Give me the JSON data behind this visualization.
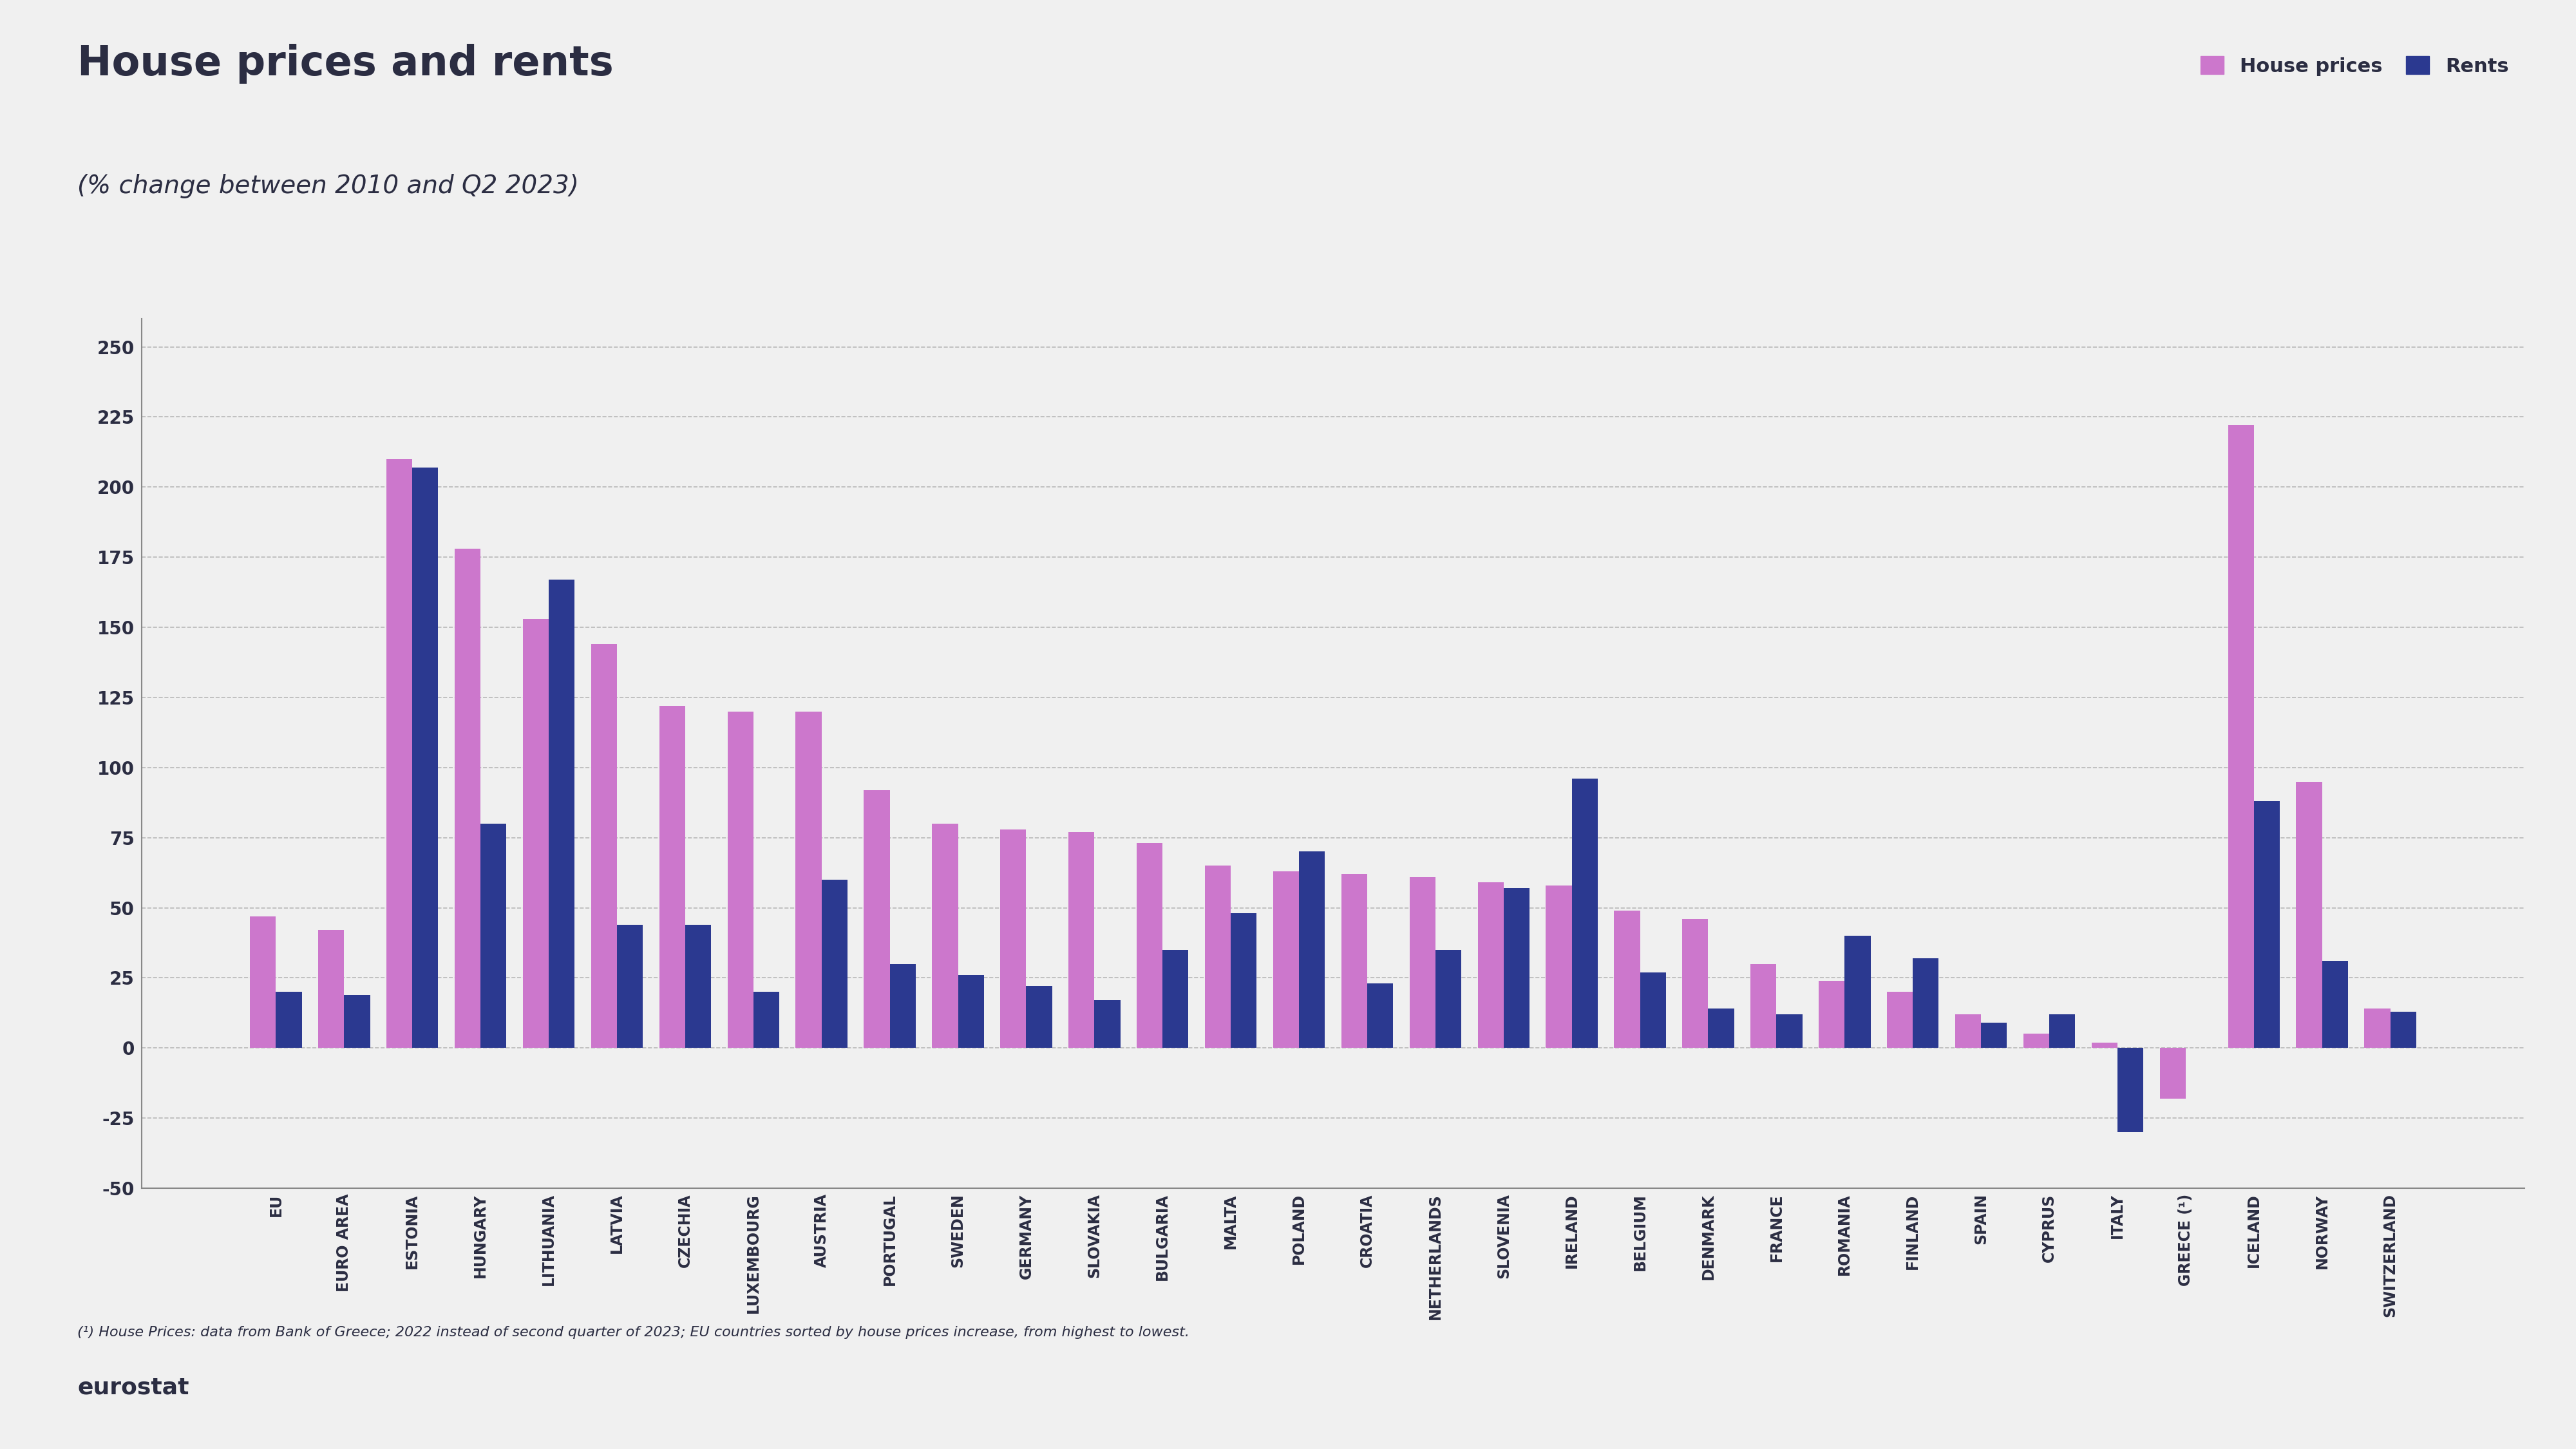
{
  "title": "House prices and rents",
  "subtitle": "(% change between 2010 and Q2 2023)",
  "categories": [
    "EU",
    "EURO AREA",
    "ESTONIA",
    "HUNGARY",
    "LITHUANIA",
    "LATVIA",
    "CZECHIA",
    "LUXEMBOURG",
    "AUSTRIA",
    "PORTUGAL",
    "SWEDEN",
    "GERMANY",
    "SLOVAKIA",
    "BULGARIA",
    "MALTA",
    "POLAND",
    "CROATIA",
    "NETHERLANDS",
    "SLOVENIA",
    "IRELAND",
    "BELGIUM",
    "DENMARK",
    "FRANCE",
    "ROMANIA",
    "FINLAND",
    "SPAIN",
    "CYPRUS",
    "ITALY",
    "GREECE (¹)",
    "ICELAND",
    "NORWAY",
    "SWITZERLAND"
  ],
  "house_prices": [
    47,
    42,
    210,
    178,
    153,
    144,
    122,
    120,
    120,
    92,
    80,
    78,
    77,
    73,
    65,
    63,
    62,
    61,
    59,
    58,
    49,
    46,
    30,
    24,
    20,
    12,
    5,
    2,
    -18,
    222,
    95,
    14
  ],
  "rents": [
    20,
    19,
    207,
    80,
    167,
    44,
    44,
    20,
    60,
    30,
    26,
    22,
    17,
    35,
    48,
    70,
    23,
    35,
    57,
    96,
    27,
    14,
    12,
    40,
    32,
    9,
    12,
    -30,
    0,
    88,
    31,
    13
  ],
  "house_price_color": "#CC77CC",
  "rent_color": "#2B3990",
  "background_color": "#F0F0F0",
  "ylim": [
    -50,
    260
  ],
  "yticks": [
    -50,
    -25,
    0,
    25,
    50,
    75,
    100,
    125,
    150,
    175,
    200,
    225,
    250
  ],
  "footnote": "(¹) House Prices: data from Bank of Greece; 2022 instead of second quarter of 2023; EU countries sorted by house prices increase, from highest to lowest.",
  "legend_house_prices": "House prices",
  "legend_rents": "Rents"
}
